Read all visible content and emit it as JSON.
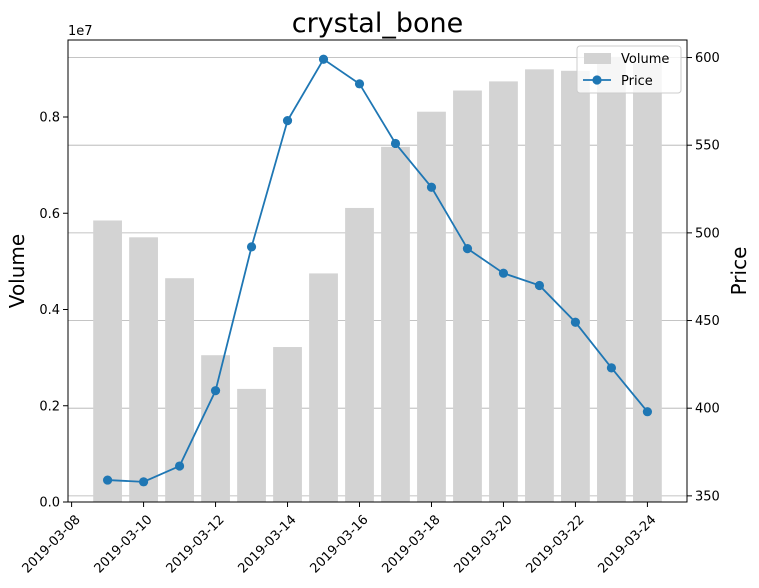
{
  "chart_data": {
    "type": "bar+line",
    "title": "crystal_bone",
    "xlabel": "",
    "y_left_label": "Volume",
    "y_right_label": "Price",
    "y_left_offset": "1e7",
    "dates": [
      "2019-03-09",
      "2019-03-10",
      "2019-03-11",
      "2019-03-12",
      "2019-03-13",
      "2019-03-14",
      "2019-03-15",
      "2019-03-16",
      "2019-03-17",
      "2019-03-18",
      "2019-03-19",
      "2019-03-20",
      "2019-03-21",
      "2019-03-22",
      "2019-03-23",
      "2019-03-24"
    ],
    "x_ticks": [
      "2019-03-08",
      "2019-03-10",
      "2019-03-12",
      "2019-03-14",
      "2019-03-16",
      "2019-03-18",
      "2019-03-20",
      "2019-03-22",
      "2019-03-24"
    ],
    "series": [
      {
        "name": "Volume",
        "kind": "bar",
        "axis": "left",
        "color": "#d3d3d3",
        "values": [
          5850000,
          5500000,
          4650000,
          3050000,
          2350000,
          3220000,
          4750000,
          6110000,
          7380000,
          8110000,
          8550000,
          8740000,
          8990000,
          8960000,
          9250000,
          9120000
        ]
      },
      {
        "name": "Price",
        "kind": "line",
        "axis": "right",
        "color": "#1f77b4",
        "values": [
          359,
          358,
          367,
          410,
          492,
          564,
          599,
          585,
          551,
          526,
          491,
          477,
          470,
          449,
          423,
          398
        ]
      }
    ],
    "y_left_ticks": [
      "0.0",
      "0.2",
      "0.4",
      "0.6",
      "0.8"
    ],
    "y_left_tick_values": [
      0,
      2000000,
      4000000,
      6000000,
      8000000
    ],
    "y_left_range": [
      0,
      9600000
    ],
    "y_right_ticks": [
      "350",
      "400",
      "450",
      "500",
      "550",
      "600"
    ],
    "y_right_tick_values": [
      350,
      400,
      450,
      500,
      550,
      600
    ],
    "y_right_range": [
      346.5,
      610
    ],
    "grid": "horizontal, right axis",
    "legend_position": "upper-right",
    "legend_entries": [
      "Volume",
      "Price"
    ]
  }
}
